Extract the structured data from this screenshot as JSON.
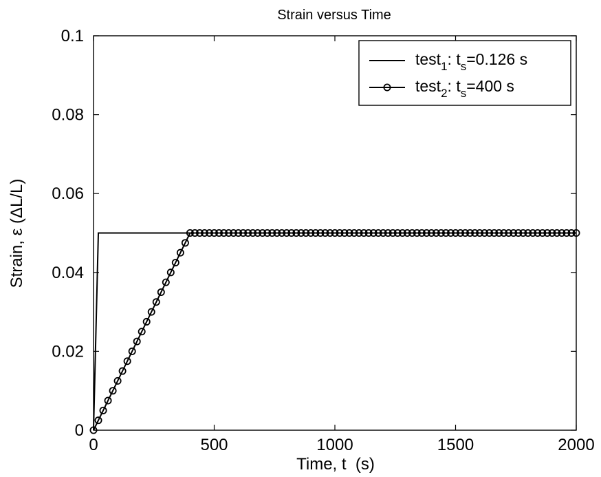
{
  "chart_data": {
    "type": "line",
    "title": "Strain versus Time",
    "xlabel": "Time, t  (s)",
    "ylabel": "Strain, ε (ΔL/L)",
    "xlim": [
      0,
      2000
    ],
    "ylim": [
      0,
      0.1
    ],
    "xticks": [
      0,
      500,
      1000,
      1500,
      2000
    ],
    "xtick_labels": [
      "0",
      "500",
      "1000",
      "1500",
      "2000"
    ],
    "yticks": [
      0,
      0.02,
      0.04,
      0.06,
      0.08,
      0.1
    ],
    "ytick_labels": [
      "0",
      "0.02",
      "0.04",
      "0.06",
      "0.08",
      "0.1"
    ],
    "grid": false,
    "legend": "top-right",
    "series": [
      {
        "name": "test1: ts=0.126 s",
        "legend_base": "test",
        "legend_sub1": "1",
        "legend_mid": ": t",
        "legend_sub2": "s",
        "legend_tail": "=0.126 s",
        "marker": "none",
        "color": "#000000",
        "x": [
          0,
          20,
          2000
        ],
        "y": [
          0,
          0.05,
          0.05
        ]
      },
      {
        "name": "test2: ts=400 s",
        "legend_base": "test",
        "legend_sub1": "2",
        "legend_mid": ": t",
        "legend_sub2": "s",
        "legend_tail": "=400 s",
        "marker": "circle",
        "color": "#000000",
        "x": [
          0,
          400,
          2000
        ],
        "y": [
          0,
          0.05,
          0.05
        ],
        "marker_step": 20
      }
    ]
  }
}
